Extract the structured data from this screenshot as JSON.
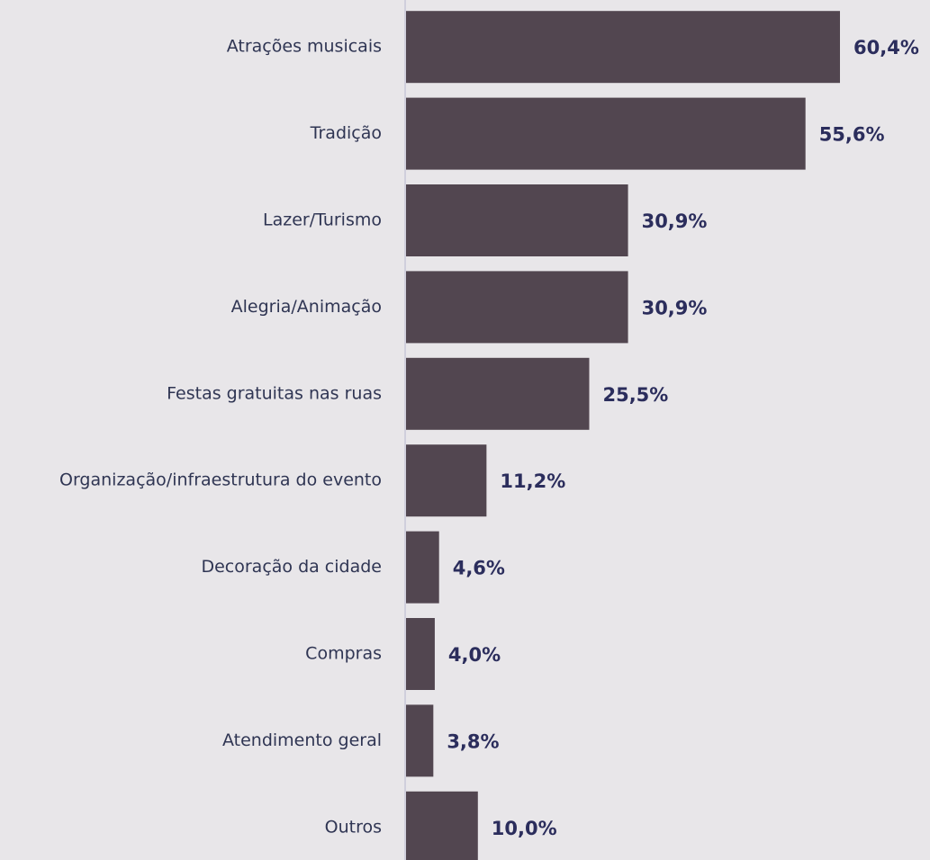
{
  "chart_data": {
    "type": "bar",
    "orientation": "horizontal",
    "categories": [
      "Atrações musicais",
      "Tradição",
      "Lazer/Turismo",
      "Alegria/Animação",
      "Festas gratuitas nas ruas",
      "Organização/infraestrutura do evento",
      "Decoração da cidade",
      "Compras",
      "Atendimento geral",
      "Outros"
    ],
    "values": [
      60.4,
      55.6,
      30.9,
      30.9,
      25.5,
      11.2,
      4.6,
      4.0,
      3.8,
      10.0
    ],
    "value_labels": [
      "60,4%",
      "55,6%",
      "30,9%",
      "30,9%",
      "25,5%",
      "11,2%",
      "4,6%",
      "4,0%",
      "3,8%",
      "10,0%"
    ],
    "color": "#524650"
  }
}
